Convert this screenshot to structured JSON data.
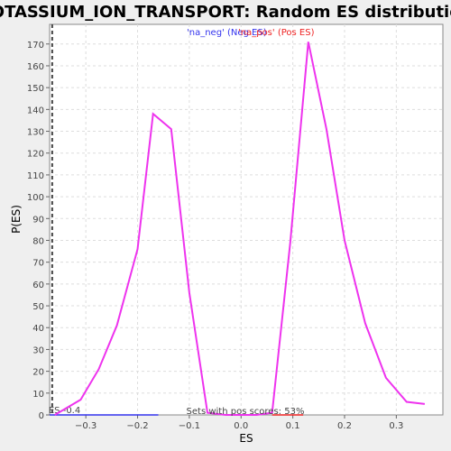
{
  "chart_data": {
    "type": "line",
    "title": "POTASSIUM_ION_TRANSPORT: Random ES distribution",
    "xlabel": "ES",
    "ylabel": "P(ES)",
    "xlim": [
      -0.37,
      0.39
    ],
    "ylim": [
      0,
      179
    ],
    "xticks": [
      -0.3,
      -0.2,
      -0.1,
      0.0,
      0.1,
      0.2,
      0.3
    ],
    "xtick_labels": [
      "−0.3",
      "−0.2",
      "−0.1",
      "0.0",
      "0.1",
      "0.2",
      "0.3"
    ],
    "yticks": [
      0,
      10,
      20,
      30,
      40,
      50,
      60,
      70,
      80,
      90,
      100,
      110,
      120,
      130,
      140,
      150,
      160,
      170
    ],
    "grid": true,
    "legend_position": "top-center",
    "series": [
      {
        "name": "'na_neg' (Neg ES)",
        "color": "#3333ee",
        "x": [
          -0.37,
          -0.355,
          -0.34,
          -0.32,
          -0.3,
          -0.28,
          -0.26,
          -0.24,
          -0.22,
          -0.2,
          -0.18,
          -0.16
        ],
        "y": [
          0,
          0,
          0,
          0,
          0,
          0,
          0,
          0,
          0,
          0,
          0,
          0
        ]
      },
      {
        "name": "'na_pos' (Pos ES)",
        "color": "#ee2222",
        "x": [
          0.06,
          0.08,
          0.1,
          0.12
        ],
        "y": [
          0,
          0,
          0,
          0
        ]
      },
      {
        "name": "",
        "color": "#ee33ee",
        "x": [
          -0.36,
          -0.31,
          -0.275,
          -0.24,
          -0.2,
          -0.17,
          -0.135,
          -0.1,
          -0.065,
          -0.03,
          0.0,
          0.03,
          0.06,
          0.095,
          0.13,
          0.165,
          0.2,
          0.24,
          0.28,
          0.32,
          0.355
        ],
        "y": [
          0,
          7,
          21,
          41,
          76,
          138,
          131,
          56,
          1,
          0,
          0,
          0,
          1,
          79,
          171,
          131,
          80,
          42,
          17,
          6,
          5
        ]
      }
    ],
    "vline": {
      "x": -0.365,
      "label": "ES -0.4"
    },
    "annotation": "Sets with pos scores: 53%"
  }
}
